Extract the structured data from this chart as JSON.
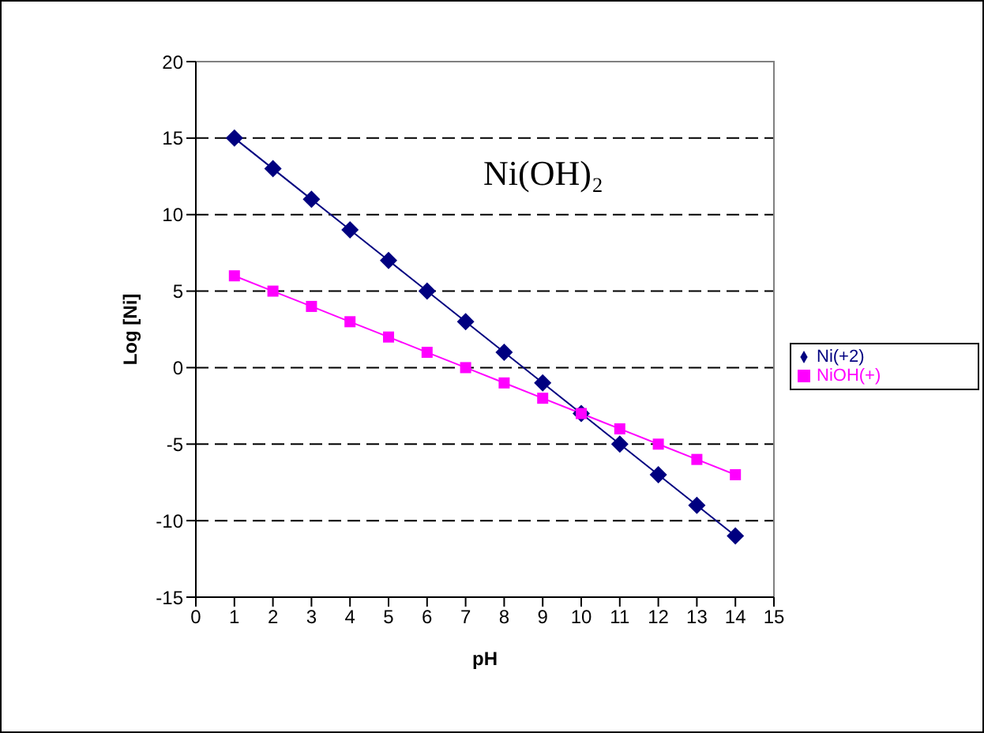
{
  "chart_data": {
    "type": "line",
    "xlabel": "pH",
    "ylabel": "Log [Ni]",
    "annotations": [
      "Ni(OH)₂"
    ],
    "x": [
      1,
      2,
      3,
      4,
      5,
      6,
      7,
      8,
      9,
      10,
      11,
      12,
      13,
      14
    ],
    "series": [
      {
        "name": "Ni(+2)",
        "color": "#000080",
        "marker": "diamond",
        "values": [
          15,
          13,
          11,
          9,
          7,
          5,
          3,
          1,
          -1,
          -3,
          -5,
          -7,
          -9,
          -11
        ]
      },
      {
        "name": "NiOH(+)",
        "color": "#ff00ff",
        "marker": "square",
        "values": [
          6,
          5,
          4,
          3,
          2,
          1,
          0,
          -1,
          -2,
          -3,
          -4,
          -5,
          -6,
          -7
        ]
      }
    ],
    "xlim": [
      0,
      15
    ],
    "xticks": [
      0,
      1,
      2,
      3,
      4,
      5,
      6,
      7,
      8,
      9,
      10,
      11,
      12,
      13,
      14,
      15
    ],
    "ylim": [
      -15,
      20
    ],
    "yticks": [
      -15,
      -10,
      -5,
      0,
      5,
      10,
      15,
      20
    ],
    "grid": "y",
    "legend": "right",
    "line_style": "solid"
  }
}
